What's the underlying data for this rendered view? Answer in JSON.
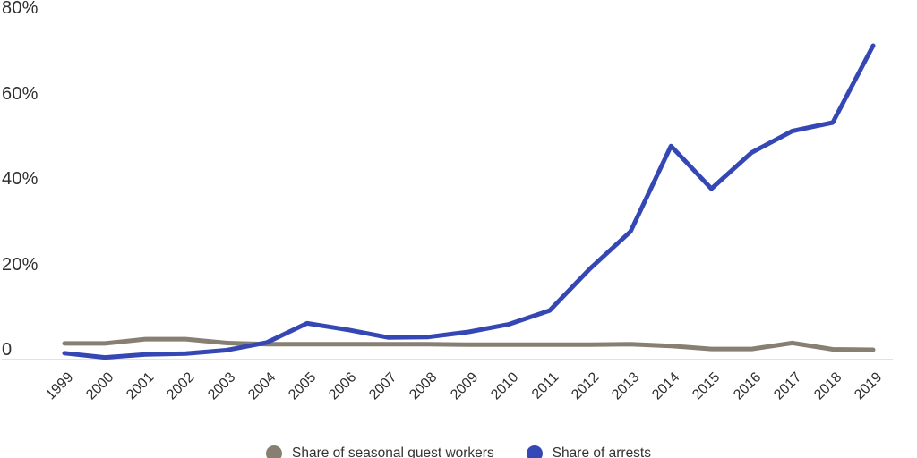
{
  "chart_data": {
    "type": "line",
    "title": "",
    "xlabel": "",
    "ylabel": "",
    "x": [
      "1999",
      "2000",
      "2001",
      "2002",
      "2003",
      "2004",
      "2005",
      "2006",
      "2007",
      "2008",
      "2009",
      "2010",
      "2011",
      "2012",
      "2013",
      "2014",
      "2015",
      "2016",
      "2017",
      "2018",
      "2019"
    ],
    "series": [
      {
        "name": "Share of seasonal guest workers",
        "color": "#877f72",
        "values": [
          3.8,
          3.8,
          4.8,
          4.8,
          3.9,
          3.6,
          3.6,
          3.6,
          3.6,
          3.6,
          3.5,
          3.5,
          3.5,
          3.5,
          3.6,
          3.2,
          2.5,
          2.5,
          3.9,
          2.4,
          2.3
        ]
      },
      {
        "name": "Share of arrests",
        "color": "#3547b4",
        "values": [
          1.5,
          0.5,
          1.2,
          1.4,
          2.2,
          4,
          8.5,
          7,
          5.2,
          5.3,
          6.5,
          8.3,
          11.5,
          21.3,
          30,
          50,
          40,
          48.5,
          53.5,
          55.5,
          73.5
        ]
      }
    ],
    "ylim": [
      0,
      80
    ],
    "yticks": [
      {
        "value": 80,
        "label": "80%"
      },
      {
        "value": 60,
        "label": "60%"
      },
      {
        "value": 40,
        "label": "40%"
      },
      {
        "value": 20,
        "label": "20%"
      },
      {
        "value": 0,
        "label": "0"
      }
    ],
    "grid": false,
    "x_tick_rotation": -45,
    "legend_position": "bottom-center"
  },
  "colors": {
    "axis_line": "#d9d9d9",
    "tick_text": "#2f2f2f",
    "background": "#ffffff"
  }
}
